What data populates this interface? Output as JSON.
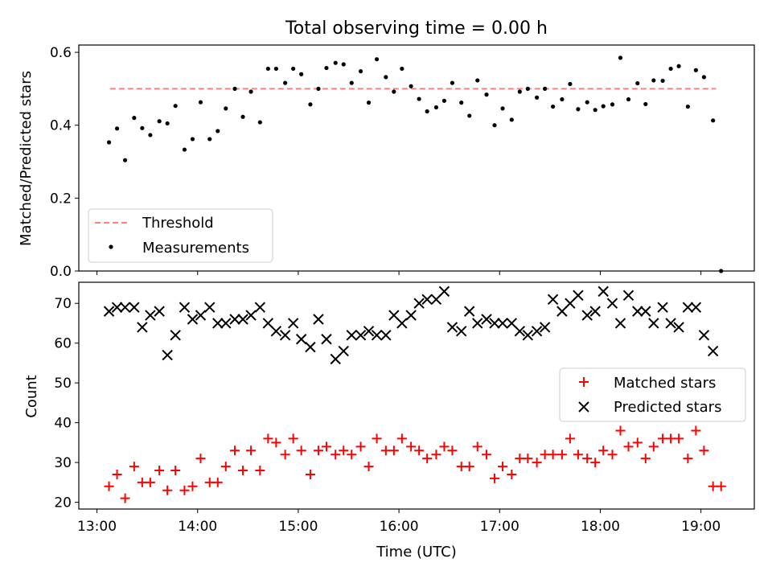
{
  "figure_title": "Total observing time = 0.00 h",
  "chart_data": [
    {
      "type": "scatter",
      "ylabel": "Matched/Predicted stars",
      "ylim": [
        0.0,
        0.62
      ],
      "xlim": [
        12.82,
        19.53
      ],
      "yticks": [
        0.0,
        0.2,
        0.4,
        0.6
      ],
      "ytick_labels": [
        "0.0",
        "0.2",
        "0.4",
        "0.6"
      ],
      "legend_position": "lower-left",
      "threshold": {
        "name": "Threshold",
        "value": 0.5,
        "x": [
          13.13,
          19.15
        ],
        "color": "#ff8080"
      },
      "series": [
        {
          "name": "Measurements",
          "color": "#000000",
          "x": [
            13.12,
            13.2,
            13.28,
            13.37,
            13.45,
            13.53,
            13.62,
            13.7,
            13.78,
            13.87,
            13.95,
            14.03,
            14.12,
            14.2,
            14.28,
            14.37,
            14.45,
            14.53,
            14.62,
            14.7,
            14.78,
            14.87,
            14.95,
            15.03,
            15.12,
            15.2,
            15.28,
            15.37,
            15.45,
            15.53,
            15.62,
            15.7,
            15.78,
            15.87,
            15.95,
            16.03,
            16.12,
            16.2,
            16.28,
            16.37,
            16.45,
            16.53,
            16.62,
            16.7,
            16.78,
            16.87,
            16.95,
            17.03,
            17.12,
            17.2,
            17.28,
            17.37,
            17.45,
            17.53,
            17.62,
            17.7,
            17.78,
            17.87,
            17.95,
            18.03,
            18.12,
            18.2,
            18.28,
            18.37,
            18.45,
            18.53,
            18.62,
            18.7,
            18.78,
            18.87,
            18.95,
            19.03,
            19.12,
            19.2
          ],
          "y": [
            0.353,
            0.391,
            0.304,
            0.42,
            0.392,
            0.373,
            0.411,
            0.405,
            0.453,
            0.333,
            0.362,
            0.463,
            0.362,
            0.384,
            0.446,
            0.5,
            0.423,
            0.492,
            0.408,
            0.555,
            0.555,
            0.516,
            0.555,
            0.54,
            0.457,
            0.5,
            0.557,
            0.571,
            0.567,
            0.516,
            0.548,
            0.462,
            0.581,
            0.532,
            0.492,
            0.555,
            0.507,
            0.472,
            0.438,
            0.449,
            0.467,
            0.516,
            0.462,
            0.426,
            0.523,
            0.484,
            0.4,
            0.446,
            0.415,
            0.492,
            0.5,
            0.476,
            0.5,
            0.451,
            0.471,
            0.513,
            0.444,
            0.463,
            0.442,
            0.452,
            0.457,
            0.585,
            0.471,
            0.515,
            0.458,
            0.523,
            0.522,
            0.555,
            0.562,
            0.451,
            0.551,
            0.532,
            0.413,
            0.0
          ]
        }
      ]
    },
    {
      "type": "scatter",
      "xlabel": "Time (UTC)",
      "ylabel": "Count",
      "ylim": [
        18.3,
        75.3
      ],
      "xlim": [
        12.82,
        19.53
      ],
      "xticks": [
        13,
        14,
        15,
        16,
        17,
        18,
        19
      ],
      "xtick_labels": [
        "13:00",
        "14:00",
        "15:00",
        "16:00",
        "17:00",
        "18:00",
        "19:00"
      ],
      "yticks": [
        20,
        30,
        40,
        50,
        60,
        70
      ],
      "ytick_labels": [
        "20",
        "30",
        "40",
        "50",
        "60",
        "70"
      ],
      "legend_position": "center-right",
      "series": [
        {
          "name": "Matched stars",
          "marker": "+",
          "color": "#ff0000",
          "x": [
            13.12,
            13.2,
            13.28,
            13.37,
            13.45,
            13.53,
            13.62,
            13.7,
            13.78,
            13.87,
            13.95,
            14.03,
            14.12,
            14.2,
            14.28,
            14.37,
            14.45,
            14.53,
            14.62,
            14.7,
            14.78,
            14.87,
            14.95,
            15.03,
            15.12,
            15.2,
            15.28,
            15.37,
            15.45,
            15.53,
            15.62,
            15.7,
            15.78,
            15.87,
            15.95,
            16.03,
            16.12,
            16.2,
            16.28,
            16.37,
            16.45,
            16.53,
            16.62,
            16.7,
            16.78,
            16.87,
            16.95,
            17.03,
            17.12,
            17.2,
            17.28,
            17.37,
            17.45,
            17.53,
            17.62,
            17.7,
            17.78,
            17.87,
            17.95,
            18.03,
            18.12,
            18.2,
            18.28,
            18.37,
            18.45,
            18.53,
            18.62,
            18.7,
            18.78,
            18.87,
            18.95,
            19.03,
            19.12,
            19.2
          ],
          "y": [
            24,
            27,
            21,
            29,
            25,
            25,
            28,
            23,
            28,
            23,
            24,
            31,
            25,
            25,
            29,
            33,
            28,
            33,
            28,
            36,
            35,
            32,
            36,
            33,
            27,
            33,
            34,
            32,
            33,
            32,
            34,
            29,
            36,
            33,
            33,
            36,
            34,
            33,
            31,
            32,
            34,
            33,
            29,
            29,
            34,
            32,
            26,
            29,
            27,
            31,
            31,
            30,
            32,
            32,
            32,
            36,
            32,
            31,
            30,
            33,
            32,
            38,
            34,
            35,
            31,
            34,
            36,
            36,
            36,
            31,
            38,
            33,
            24,
            24
          ]
        },
        {
          "name": "Predicted stars",
          "marker": "x",
          "color": "#000000",
          "x": [
            13.12,
            13.2,
            13.28,
            13.37,
            13.45,
            13.53,
            13.62,
            13.7,
            13.78,
            13.87,
            13.95,
            14.03,
            14.12,
            14.2,
            14.28,
            14.37,
            14.45,
            14.53,
            14.62,
            14.7,
            14.78,
            14.87,
            14.95,
            15.03,
            15.12,
            15.2,
            15.28,
            15.37,
            15.45,
            15.53,
            15.62,
            15.7,
            15.78,
            15.87,
            15.95,
            16.03,
            16.12,
            16.2,
            16.28,
            16.37,
            16.45,
            16.53,
            16.62,
            16.7,
            16.78,
            16.87,
            16.95,
            17.03,
            17.12,
            17.2,
            17.28,
            17.37,
            17.45,
            17.53,
            17.62,
            17.7,
            17.78,
            17.87,
            17.95,
            18.03,
            18.12,
            18.2,
            18.28,
            18.37,
            18.45,
            18.53,
            18.62,
            18.7,
            18.78,
            18.87,
            18.95,
            19.03,
            19.12
          ],
          "y": [
            68,
            69,
            69,
            69,
            64,
            67,
            68,
            57,
            62,
            69,
            66,
            67,
            69,
            65,
            65,
            66,
            66,
            67,
            69,
            65,
            63,
            62,
            65,
            61,
            59,
            66,
            61,
            56,
            58,
            62,
            62,
            63,
            62,
            62,
            67,
            65,
            67,
            70,
            71,
            71,
            73,
            64,
            63,
            68,
            65,
            66,
            65,
            65,
            65,
            63,
            62,
            63,
            64,
            71,
            68,
            70,
            72,
            67,
            68,
            73,
            70,
            65,
            72,
            68,
            68,
            65,
            69,
            65,
            64,
            69,
            69,
            62,
            58
          ]
        }
      ]
    }
  ]
}
